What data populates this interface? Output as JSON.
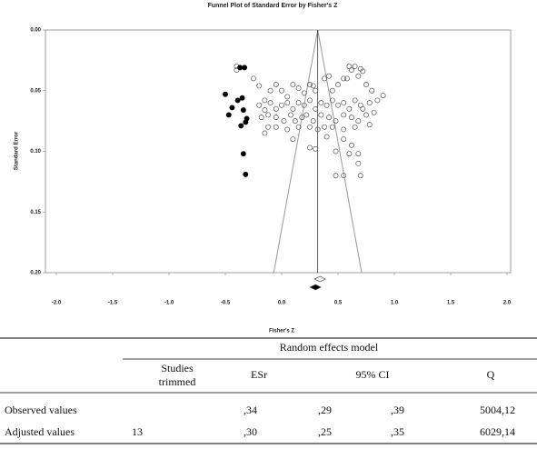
{
  "chart_data": {
    "type": "scatter",
    "title": "Funnel Plot of Standard Error by Fisher's Z",
    "x_label": "Fisher's Z",
    "y_label": "Standard Error",
    "xlim": [
      -2,
      2
    ],
    "ylim": [
      0.2,
      0
    ],
    "xticks": [
      {
        "value": -2,
        "label": "-2.0"
      },
      {
        "value": -1.5,
        "label": "-1.5"
      },
      {
        "value": -1,
        "label": "-1.0"
      },
      {
        "value": -0.5,
        "label": "-0.5"
      },
      {
        "value": 0,
        "label": "0.0"
      },
      {
        "value": 0.5,
        "label": "0.5"
      },
      {
        "value": 1,
        "label": "1.0"
      },
      {
        "value": 1.5,
        "label": "1.5"
      },
      {
        "value": 2,
        "label": "2.0"
      }
    ],
    "yticks": [
      {
        "value": 0,
        "label": "0.00"
      },
      {
        "value": 0.05,
        "label": "0.05"
      },
      {
        "value": 0.1,
        "label": "0.10"
      },
      {
        "value": 0.15,
        "label": "0.15"
      },
      {
        "value": 0.2,
        "label": "0.20"
      }
    ],
    "series": [
      {
        "color": "#555555",
        "filled": false,
        "x": [
          -0.4,
          -0.4,
          -0.25,
          -0.2,
          -0.15,
          -0.1,
          -0.05,
          0.0,
          0.05,
          0.1,
          0.15,
          0.2,
          0.25,
          0.28,
          0.3,
          0.38,
          0.42,
          0.45,
          0.5,
          0.55,
          0.6,
          0.62,
          0.65,
          0.7,
          0.72,
          0.68,
          0.58,
          0.75,
          0.8,
          0.9,
          0.85,
          0.78,
          0.7,
          0.65,
          0.6,
          0.55,
          0.5,
          0.45,
          0.4,
          0.35,
          0.3,
          0.25,
          0.2,
          0.15,
          0.1,
          0.05,
          0.0,
          -0.05,
          -0.1,
          -0.15,
          -0.2,
          -0.18,
          -0.12,
          -0.05,
          0.02,
          0.08,
          0.12,
          0.18,
          0.22,
          0.28,
          0.35,
          0.42,
          0.48,
          0.55,
          0.62,
          0.68,
          0.75,
          0.82,
          0.72,
          0.78,
          0.65,
          0.55,
          0.45,
          0.38,
          0.32,
          0.25,
          0.15,
          0.05,
          -0.05,
          -0.12,
          -0.15,
          0.1,
          0.4,
          0.55,
          0.62,
          0.25,
          0.3,
          0.48,
          0.6,
          0.68,
          0.68,
          0.48,
          0.55,
          0.7
        ],
        "values": [
          0.03,
          0.033,
          0.04,
          0.046,
          0.058,
          0.05,
          0.045,
          0.05,
          0.055,
          0.045,
          0.048,
          0.052,
          0.045,
          0.046,
          0.05,
          0.04,
          0.038,
          0.05,
          0.045,
          0.04,
          0.03,
          0.033,
          0.03,
          0.032,
          0.034,
          0.038,
          0.04,
          0.045,
          0.05,
          0.054,
          0.058,
          0.06,
          0.062,
          0.058,
          0.065,
          0.06,
          0.062,
          0.058,
          0.062,
          0.06,
          0.065,
          0.058,
          0.062,
          0.06,
          0.065,
          0.06,
          0.062,
          0.065,
          0.06,
          0.066,
          0.062,
          0.072,
          0.07,
          0.072,
          0.075,
          0.07,
          0.075,
          0.072,
          0.07,
          0.075,
          0.07,
          0.072,
          0.075,
          0.07,
          0.072,
          0.075,
          0.07,
          0.068,
          0.065,
          0.078,
          0.08,
          0.082,
          0.08,
          0.08,
          0.082,
          0.08,
          0.08,
          0.082,
          0.08,
          0.08,
          0.085,
          0.09,
          0.088,
          0.09,
          0.095,
          0.097,
          0.098,
          0.1,
          0.102,
          0.102,
          0.11,
          0.12,
          0.12,
          0.12
        ]
      },
      {
        "color": "#000000",
        "filled": true,
        "x": [
          -0.37,
          -0.33,
          -0.5,
          -0.39,
          -0.35,
          -0.44,
          -0.47,
          -0.34,
          -0.31,
          -0.36,
          -0.32,
          -0.34,
          -0.32
        ],
        "values": [
          0.031,
          0.031,
          0.053,
          0.058,
          0.056,
          0.064,
          0.07,
          0.066,
          0.073,
          0.079,
          0.076,
          0.102,
          0.119
        ]
      }
    ],
    "funnel": {
      "x": [
        -0.07,
        0.32,
        0.71
      ],
      "values": [
        0.2,
        0,
        0.2
      ]
    },
    "center_line": 0.32,
    "summary_diamonds": [
      {
        "x": 0.34,
        "filled": false
      },
      {
        "x": 0.3,
        "filled": true
      }
    ]
  },
  "table": {
    "group_header": "Random effects model",
    "headers": {
      "trimmed": [
        "Studies",
        "trimmed"
      ],
      "esr": "ESr",
      "ci": "95% CI",
      "q": "Q"
    },
    "rows": [
      {
        "label": "Observed values",
        "esr": ",34",
        "ci_low": ",29",
        "ci_high": ",39",
        "q": "5004,12"
      },
      {
        "label": "Adjusted values",
        "trimmed": 13,
        "esr": ",30",
        "ci_low": ",25",
        "ci_high": ",35",
        "q": "6029,14"
      }
    ]
  }
}
